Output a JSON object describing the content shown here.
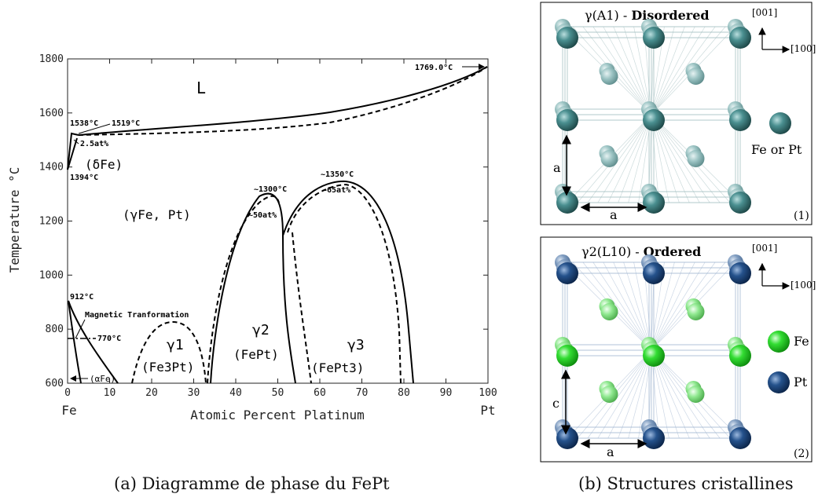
{
  "phase_diagram": {
    "ylabel": "Temperature °C",
    "xlabel": "Atomic Percent Platinum",
    "x_end_left": "Fe",
    "x_end_right": "Pt",
    "x_ticks": [
      "0",
      "10",
      "20",
      "30",
      "40",
      "50",
      "60",
      "70",
      "80",
      "90",
      "100"
    ],
    "y_ticks": [
      "600",
      "800",
      "1000",
      "1200",
      "1400",
      "1600",
      "1800"
    ],
    "labels": {
      "liquid": "L",
      "gamma_fe_pt": "(γFe, Pt)",
      "delta_fe": "(δFe)",
      "alpha_fe": "(αFe)",
      "t1769": "1769.0°C",
      "t1538": "1538°C",
      "t1519": "1519°C",
      "at25": "2.5at%",
      "t1394": "1394°C",
      "t1300": "~1300°C",
      "at50": "~50at%",
      "t1350": "~1350°C",
      "at65": "~65at%",
      "t912": "912°C",
      "magnetic": "Magnetic Tranformation",
      "t770": "770°C",
      "g1": "γ1",
      "g1_sub": "(Fe3Pt)",
      "g2": "γ2",
      "g2_sub": "(FePt)",
      "g3": "γ3",
      "g3_sub": "(FePt3)"
    }
  },
  "chart_data": {
    "type": "line",
    "xlabel": "Atomic Percent Platinum",
    "ylabel": "Temperature °C",
    "xlim": [
      0,
      100
    ],
    "ylim": [
      600,
      1800
    ],
    "series": [
      {
        "name": "liquidus",
        "points": [
          [
            2.5,
            1519
          ],
          [
            20,
            1535
          ],
          [
            40,
            1570
          ],
          [
            60,
            1620
          ],
          [
            80,
            1680
          ],
          [
            100,
            1769
          ]
        ]
      },
      {
        "name": "solidus",
        "points": [
          [
            2.5,
            1519
          ],
          [
            20,
            1525
          ],
          [
            40,
            1550
          ],
          [
            60,
            1595
          ],
          [
            80,
            1660
          ],
          [
            100,
            1769
          ]
        ]
      },
      {
        "name": "gamma2_dome",
        "points": [
          [
            33,
            600
          ],
          [
            40,
            1100
          ],
          [
            47,
            1280
          ],
          [
            50,
            1300
          ],
          [
            53,
            1250
          ],
          [
            56,
            600
          ]
        ]
      },
      {
        "name": "gamma3_dome",
        "points": [
          [
            52,
            1150
          ],
          [
            58,
            1300
          ],
          [
            65,
            1350
          ],
          [
            72,
            1320
          ],
          [
            80,
            1000
          ],
          [
            83,
            600
          ]
        ]
      },
      {
        "name": "gamma1_dome",
        "points": [
          [
            16,
            600
          ],
          [
            20,
            760
          ],
          [
            25,
            830
          ],
          [
            30,
            760
          ],
          [
            33,
            600
          ]
        ]
      },
      {
        "name": "magnetic_transformation",
        "points": [
          [
            0,
            770
          ],
          [
            5,
            770
          ]
        ]
      }
    ]
  },
  "structures": {
    "disordered": {
      "title_pre": "γ(A1) - ",
      "title_bold": "Disordered",
      "axis_top": "[001]",
      "axis_right": "[100]",
      "legend": "Fe or Pt",
      "dim_a_vert": "a",
      "dim_a_horiz": "a",
      "panel_no": "(1)",
      "atom_color": "#3f7f80"
    },
    "ordered": {
      "title_pre": "γ2(L10) - ",
      "title_bold": "Ordered",
      "axis_top": "[001]",
      "axis_right": "[100]",
      "legend_fe": "Fe",
      "legend_pt": "Pt",
      "dim_c": "c",
      "dim_a": "a",
      "panel_no": "(2)",
      "fe_color": "#22cc22",
      "pt_color": "#1e4a80"
    }
  },
  "captions": {
    "a": "(a) Diagramme de phase du FePt",
    "b": "(b) Structures cristallines"
  }
}
